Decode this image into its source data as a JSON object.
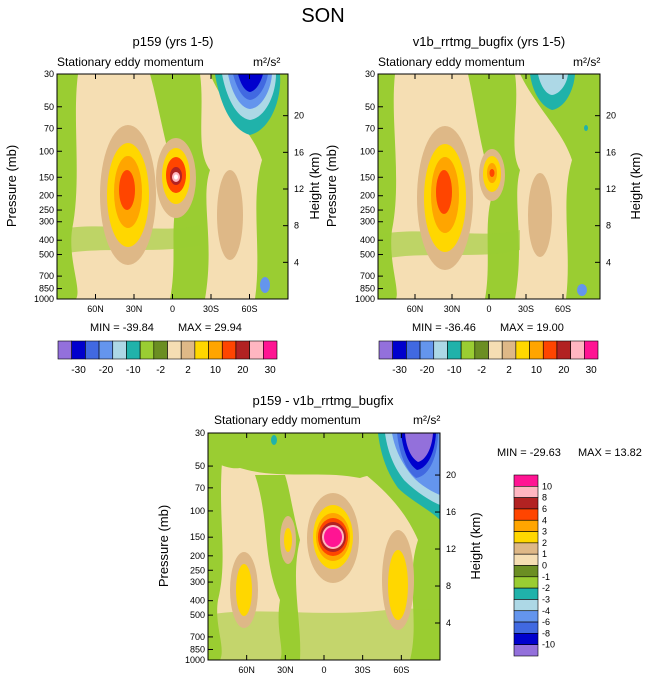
{
  "figure_title": "SON",
  "chart_data": [
    {
      "type": "heatmap",
      "panel_title": "p159 (yrs 1-5)",
      "subtitle": "Stationary eddy momentum",
      "units": "m²/s²",
      "xlabel": "",
      "ylabel": "Pressure (mb)",
      "y2label": "Height (km)",
      "x_ticks": [
        "60N",
        "30N",
        "0",
        "30S",
        "60S"
      ],
      "x_range": [
        90,
        -90
      ],
      "y_ticks": [
        "30",
        "50",
        "70",
        "100",
        "150",
        "200",
        "250",
        "300",
        "400",
        "500",
        "700",
        "850",
        "1000"
      ],
      "y_range_mb": [
        30,
        1000
      ],
      "y2_ticks": [
        "20",
        "16",
        "12",
        "8",
        "4"
      ],
      "min_label": "MIN = -39.84",
      "max_label": "MAX =  29.94",
      "min": -39.84,
      "max": 29.94
    },
    {
      "type": "heatmap",
      "panel_title": "v1b_rrtmg_bugfix (yrs 1-5)",
      "subtitle": "Stationary eddy momentum",
      "units": "m²/s²",
      "xlabel": "",
      "ylabel": "Pressure (mb)",
      "y2label": "Height (km)",
      "x_ticks": [
        "60N",
        "30N",
        "0",
        "30S",
        "60S"
      ],
      "x_range": [
        90,
        -90
      ],
      "y_ticks": [
        "30",
        "50",
        "70",
        "100",
        "150",
        "200",
        "250",
        "300",
        "400",
        "500",
        "700",
        "850",
        "1000"
      ],
      "y_range_mb": [
        30,
        1000
      ],
      "y2_ticks": [
        "20",
        "16",
        "12",
        "8",
        "4"
      ],
      "min_label": "MIN = -36.46",
      "max_label": "MAX =  19.00",
      "min": -36.46,
      "max": 19.0
    },
    {
      "type": "heatmap",
      "panel_title": "p159 - v1b_rrtmg_bugfix",
      "subtitle": "Stationary eddy momentum",
      "units": "m²/s²",
      "xlabel": "",
      "ylabel": "Pressure (mb)",
      "y2label": "Height (km)",
      "x_ticks": [
        "60N",
        "30N",
        "0",
        "30S",
        "60S"
      ],
      "x_range": [
        90,
        -90
      ],
      "y_ticks": [
        "30",
        "50",
        "70",
        "100",
        "150",
        "200",
        "250",
        "300",
        "400",
        "500",
        "700",
        "850",
        "1000"
      ],
      "y_range_mb": [
        30,
        1000
      ],
      "y2_ticks": [
        "20",
        "16",
        "12",
        "8",
        "4"
      ],
      "min_label": "MIN = -29.63",
      "max_label": "MAX =  13.82",
      "min": -29.63,
      "max": 13.82
    }
  ],
  "colorbar_top": {
    "labels": [
      "-30",
      "-20",
      "-10",
      "-2",
      "2",
      "10",
      "20",
      "30"
    ],
    "colors": [
      "#9370db",
      "#0000cd",
      "#4169e1",
      "#6495ed",
      "#add8e6",
      "#20b2aa",
      "#9acd32",
      "#6b8e23",
      "#f5deb3",
      "#deb887",
      "#ffd700",
      "#ffa500",
      "#ff4500",
      "#b22222",
      "#ffb6c1",
      "#ff1493"
    ]
  },
  "colorbar_diff": {
    "labels": [
      "10",
      "8",
      "6",
      "4",
      "3",
      "2",
      "1",
      "0",
      "-1",
      "-2",
      "-3",
      "-4",
      "-6",
      "-8",
      "-10"
    ],
    "colors": [
      "#ff1493",
      "#ffb6c1",
      "#b22222",
      "#ff4500",
      "#ffa500",
      "#ffd700",
      "#deb887",
      "#f5deb3",
      "#6b8e23",
      "#9acd32",
      "#20b2aa",
      "#add8e6",
      "#6495ed",
      "#4169e1",
      "#0000cd",
      "#9370db"
    ]
  }
}
